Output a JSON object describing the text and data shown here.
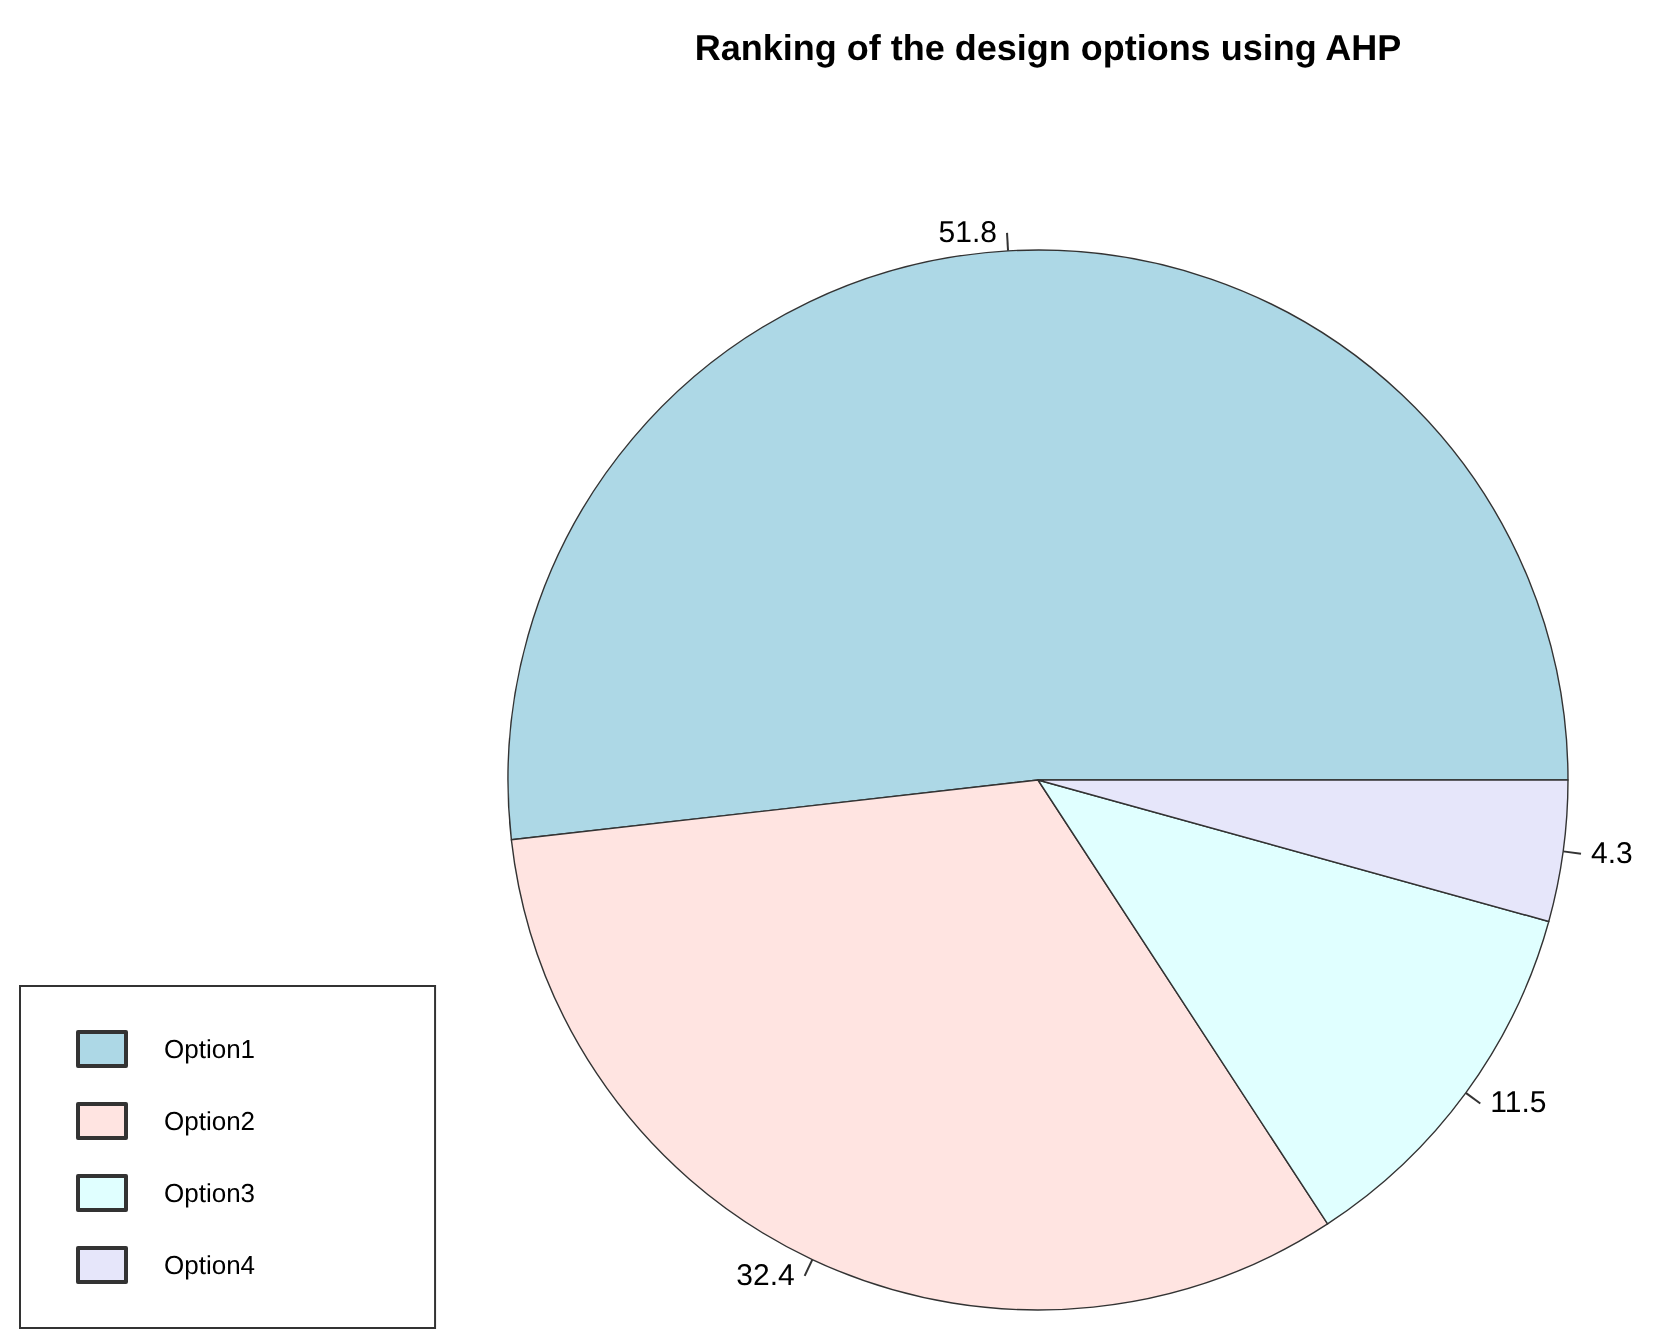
{
  "chart_data": {
    "type": "pie",
    "title": "Ranking of the design options using AHP",
    "categories": [
      "Option1",
      "Option2",
      "Option3",
      "Option4"
    ],
    "values": [
      51.8,
      32.4,
      11.5,
      4.3
    ],
    "colors": [
      "#add8e6",
      "#ffe4e1",
      "#e0ffff",
      "#e6e6fa"
    ],
    "data_labels": true,
    "legend": "bottom left"
  }
}
